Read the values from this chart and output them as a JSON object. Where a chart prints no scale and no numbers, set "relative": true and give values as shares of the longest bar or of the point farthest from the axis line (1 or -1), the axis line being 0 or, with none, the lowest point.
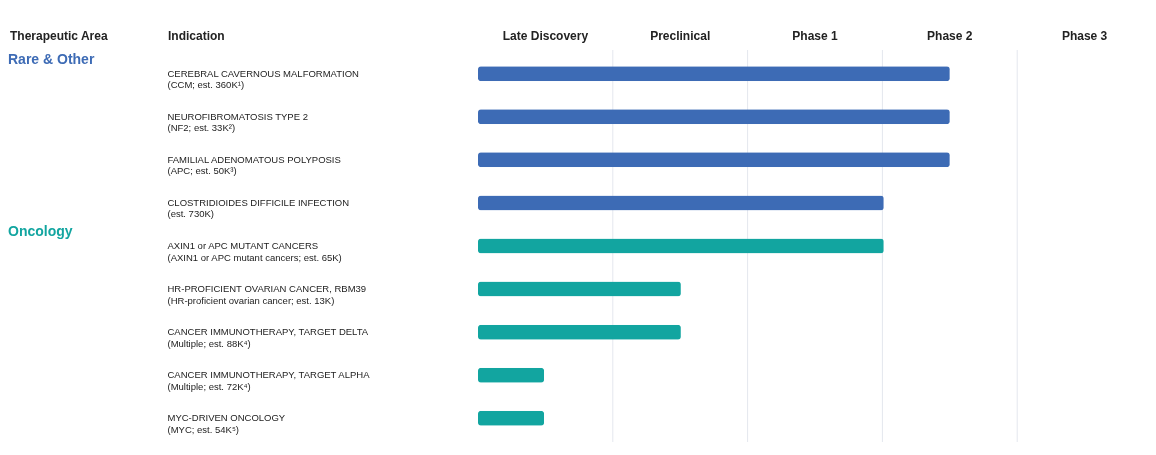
{
  "chart_data": {
    "type": "bar",
    "orientation": "horizontal",
    "relative": true,
    "annotations": [
      "Therapeutic Area",
      "Indication",
      "Late Discovery",
      "Preclinical",
      "Phase 1",
      "Phase 2",
      "Phase 3"
    ],
    "categories": [
      "CEREBRAL CAVERNOUS MALFORMATION\n(CCM; est. 360K¹)",
      "NEUROFIBROMATOSIS TYPE 2\n(NF2; est. 33K²)",
      "FAMILIAL ADENOMATOUS POLYPOSIS\n(APC; est. 50K³)",
      "CLOSTRIDIOIDES DIFFICILE INFECTION\n(est. 730K)",
      "AXIN1 or APC MUTANT CANCERS\n(AXIN1 or APC mutant cancers; est. 65K)",
      "HR-PROFICIENT OVARIAN CANCER, RBM39\n(HR-proficient ovarian cancer; est. 13K)",
      "CANCER IMMUNOTHERAPY, TARGET DELTA\n(Multiple; est. 88K⁴)",
      "CANCER IMMUNOTHERAPY, TARGET ALPHA\n(Multiple; est. 72K⁴)",
      "MYC-DRIVEN ONCOLOGY\n(MYC; est. 54K⁵)"
    ],
    "series": [
      {
        "name": "Rare & Other",
        "color": "#3d6bb5",
        "values": [
          1,
          1,
          1,
          0.86,
          null,
          null,
          null,
          null,
          null
        ]
      },
      {
        "name": "Oncology",
        "color": "#12a5a0",
        "values": [
          null,
          null,
          null,
          null,
          0.86,
          0.43,
          0.43,
          0.14,
          0.14
        ]
      }
    ]
  }
}
